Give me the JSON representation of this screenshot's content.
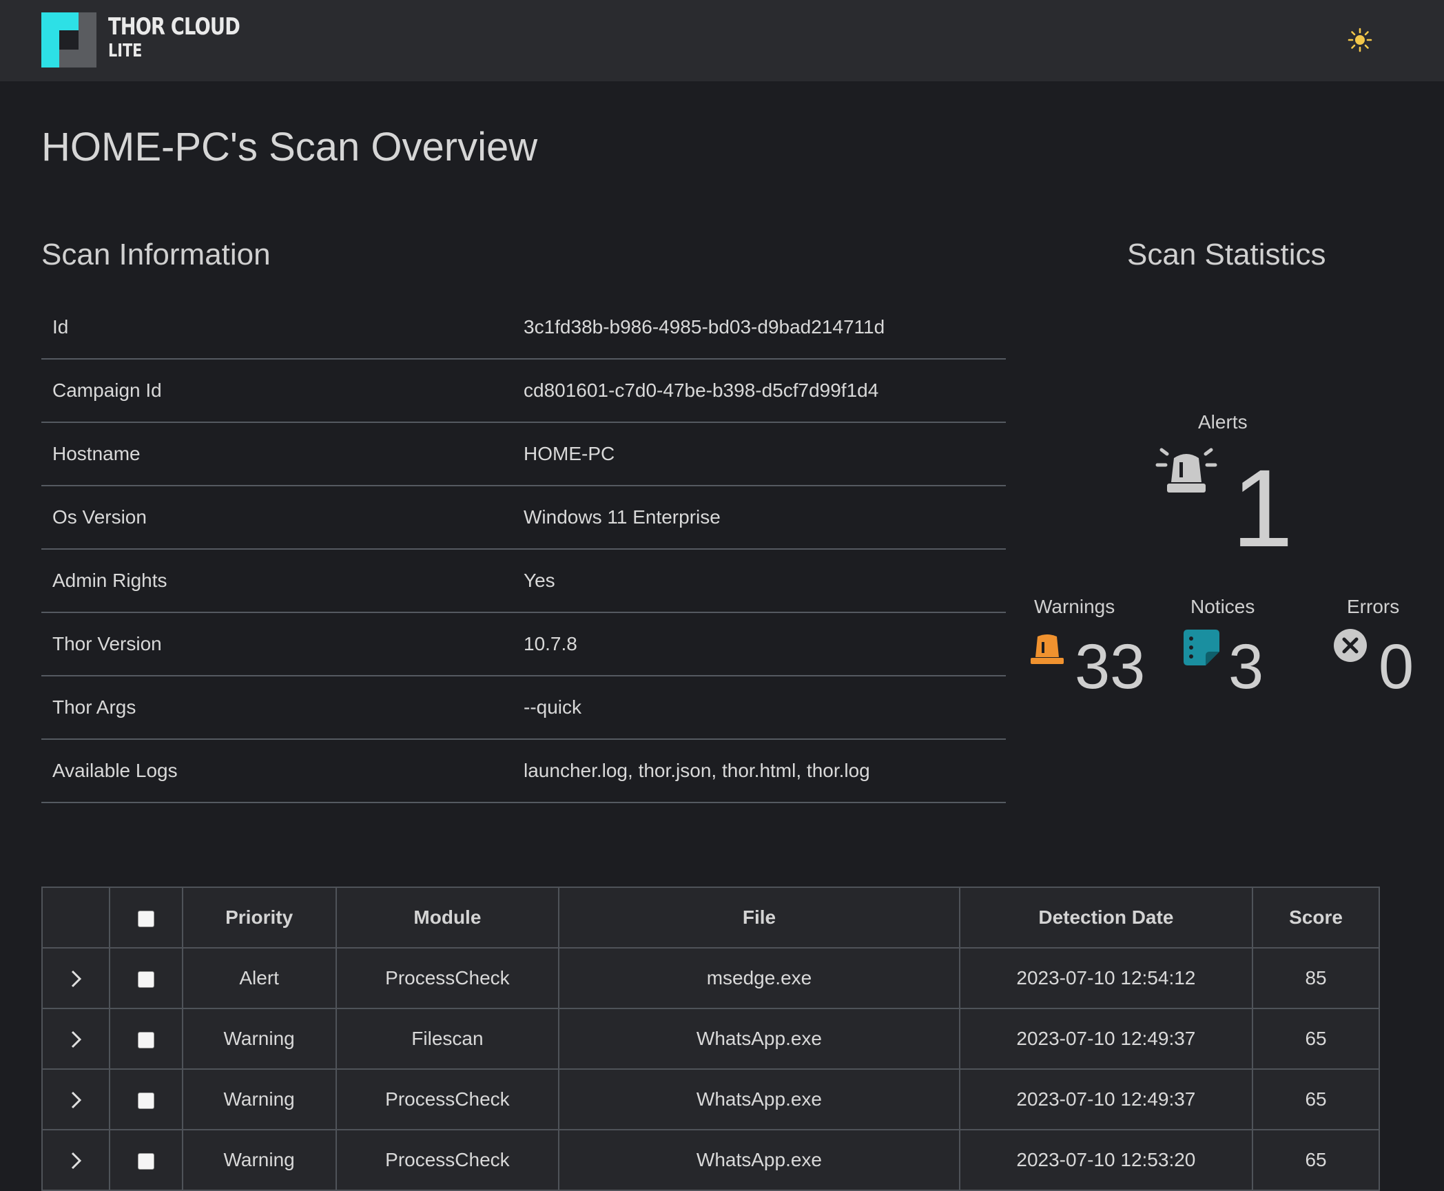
{
  "app": {
    "brand_line1": "THOR CLOUD",
    "brand_line2": "LITE",
    "theme_icon": "sun-icon"
  },
  "page": {
    "title": "HOME-PC's Scan Overview"
  },
  "scan_info": {
    "title": "Scan Information",
    "rows": [
      {
        "key": "Id",
        "value": "3c1fd38b-b986-4985-bd03-d9bad214711d"
      },
      {
        "key": "Campaign Id",
        "value": "cd801601-c7d0-47be-b398-d5cf7d99f1d4"
      },
      {
        "key": "Hostname",
        "value": "HOME-PC"
      },
      {
        "key": "Os Version",
        "value": "Windows 11 Enterprise"
      },
      {
        "key": "Admin Rights",
        "value": "Yes"
      },
      {
        "key": "Thor Version",
        "value": "10.7.8"
      },
      {
        "key": "Thor Args",
        "value": "--quick"
      },
      {
        "key": "Available Logs",
        "value": "launcher.log, thor.json, thor.html, thor.log"
      }
    ]
  },
  "scan_stats": {
    "title": "Scan Statistics",
    "alerts": {
      "label": "Alerts",
      "count": "1",
      "icon": "siren-icon"
    },
    "warnings": {
      "label": "Warnings",
      "count": "33",
      "icon": "warning-light-icon",
      "color": "#f0922f"
    },
    "notices": {
      "label": "Notices",
      "count": "3",
      "icon": "sticky-note-icon",
      "color": "#1a8fa0"
    },
    "errors": {
      "label": "Errors",
      "count": "0",
      "icon": "x-circle-icon"
    }
  },
  "detections": {
    "columns": [
      "Priority",
      "Module",
      "File",
      "Detection Date",
      "Score"
    ],
    "rows": [
      {
        "priority": "Alert",
        "module": "ProcessCheck",
        "file": "msedge.exe",
        "date": "2023-07-10 12:54:12",
        "score": "85"
      },
      {
        "priority": "Warning",
        "module": "Filescan",
        "file": "WhatsApp.exe",
        "date": "2023-07-10 12:49:37",
        "score": "65"
      },
      {
        "priority": "Warning",
        "module": "ProcessCheck",
        "file": "WhatsApp.exe",
        "date": "2023-07-10 12:49:37",
        "score": "65"
      },
      {
        "priority": "Warning",
        "module": "ProcessCheck",
        "file": "WhatsApp.exe",
        "date": "2023-07-10 12:53:20",
        "score": "65"
      }
    ]
  }
}
